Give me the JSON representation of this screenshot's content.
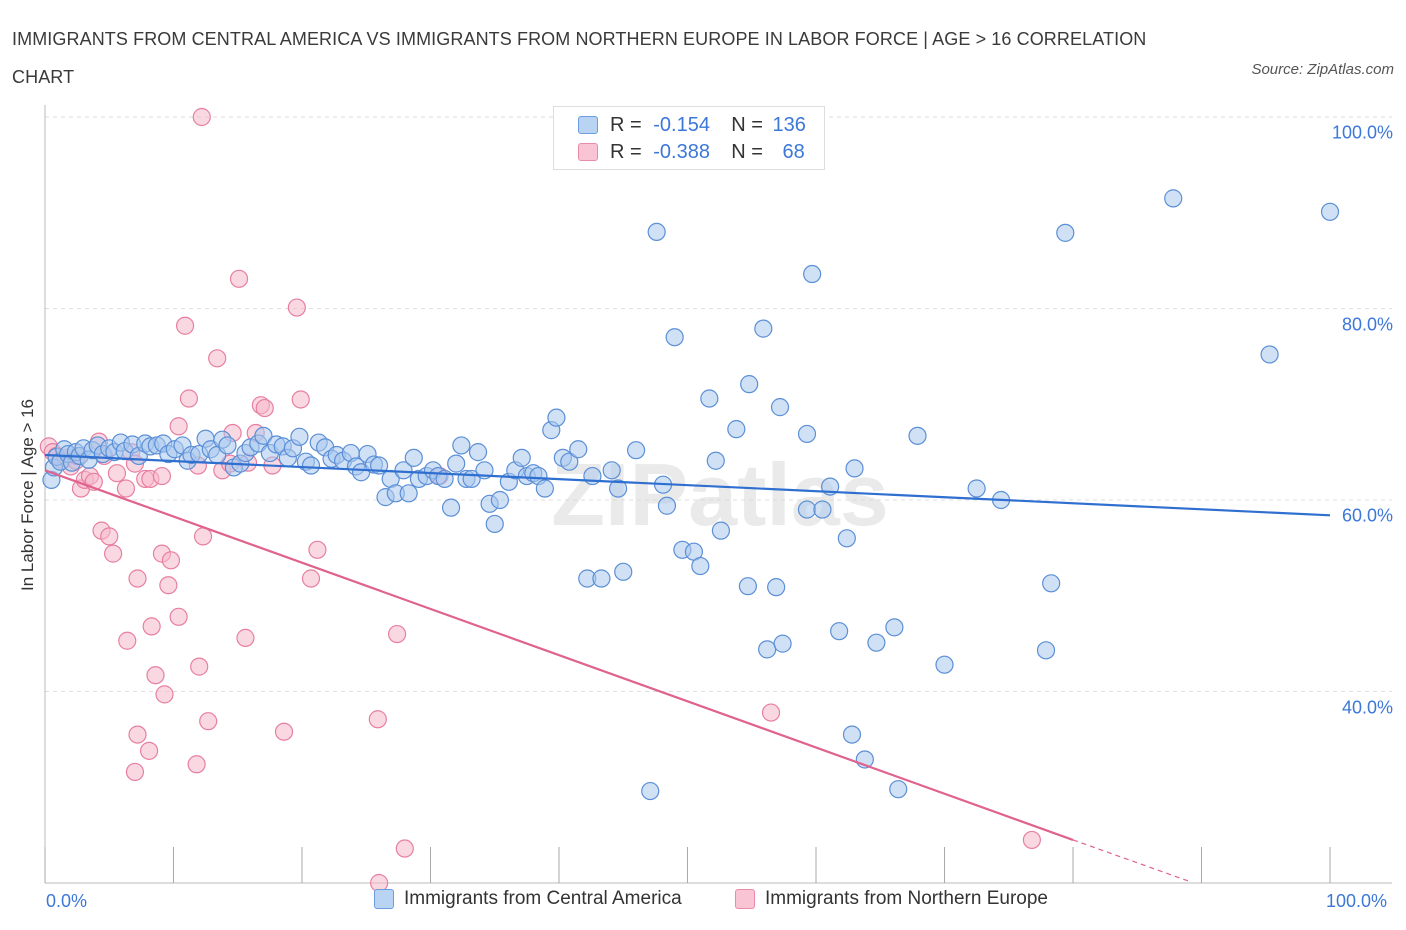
{
  "title": "IMMIGRANTS FROM CENTRAL AMERICA VS IMMIGRANTS FROM NORTHERN EUROPE IN LABOR FORCE | AGE > 16 CORRELATION CHART",
  "source": "Source: ZipAtlas.com",
  "watermark": "ZIPatlas",
  "legend_top": {
    "rows": [
      {
        "r_label": "R =",
        "r_value": "-0.154",
        "n_label": "N =",
        "n_value": "136"
      },
      {
        "r_label": "R =",
        "r_value": "-0.388",
        "n_label": "N =",
        "n_value": "68"
      }
    ]
  },
  "colors": {
    "blue_fill": "#a9c8ef",
    "blue_stroke": "#5b8fd6",
    "blue_line": "#2f6fd0",
    "pink_fill": "#f6b8cb",
    "pink_stroke": "#e77fa2",
    "pink_line": "#e0628e",
    "axis_text": "#3b78d8",
    "grid": "#dddddd"
  },
  "chart_data": {
    "type": "scatter",
    "title": "IMMIGRANTS FROM CENTRAL AMERICA VS IMMIGRANTS FROM NORTHERN EUROPE IN LABOR FORCE | AGE > 16 CORRELATION CHART",
    "xlabel": "",
    "ylabel": "In Labor Force | Age > 16",
    "xlim": [
      0,
      100
    ],
    "ylim": [
      20,
      100
    ],
    "x_tick_labels": [
      "0.0%",
      "100.0%"
    ],
    "y_tick_labels": [
      "100.0%",
      "80.0%",
      "60.0%",
      "40.0%"
    ],
    "y_ticks": [
      100,
      80,
      60,
      40
    ],
    "grid": true,
    "legend_position": "bottom-center",
    "series": [
      {
        "name": "Immigrants from Central America",
        "color": "#a9c8ef",
        "R": -0.154,
        "N": 136,
        "trend": {
          "x": [
            0,
            100
          ],
          "y": [
            64.7,
            58.4
          ]
        },
        "points": [
          [
            0.5,
            62.1
          ],
          [
            0.7,
            63.4
          ],
          [
            0.9,
            64.5
          ],
          [
            1.2,
            64.0
          ],
          [
            1.5,
            65.3
          ],
          [
            1.8,
            64.8
          ],
          [
            2.1,
            63.9
          ],
          [
            2.4,
            65.0
          ],
          [
            2.7,
            64.6
          ],
          [
            3.0,
            65.4
          ],
          [
            3.4,
            64.2
          ],
          [
            3.7,
            65.2
          ],
          [
            4.1,
            65.7
          ],
          [
            4.5,
            64.8
          ],
          [
            5.0,
            65.4
          ],
          [
            5.4,
            65.0
          ],
          [
            5.9,
            66.0
          ],
          [
            6.2,
            65.1
          ],
          [
            6.8,
            65.8
          ],
          [
            7.3,
            64.6
          ],
          [
            7.8,
            65.9
          ],
          [
            8.2,
            65.6
          ],
          [
            8.7,
            65.7
          ],
          [
            9.2,
            65.9
          ],
          [
            9.6,
            64.8
          ],
          [
            10.1,
            65.3
          ],
          [
            10.7,
            65.7
          ],
          [
            11.1,
            64.1
          ],
          [
            11.4,
            64.7
          ],
          [
            12.0,
            64.8
          ],
          [
            12.5,
            66.4
          ],
          [
            12.9,
            65.3
          ],
          [
            13.4,
            64.7
          ],
          [
            13.8,
            66.3
          ],
          [
            14.2,
            65.7
          ],
          [
            14.7,
            63.4
          ],
          [
            15.2,
            63.8
          ],
          [
            15.6,
            64.9
          ],
          [
            16.0,
            65.5
          ],
          [
            16.6,
            65.9
          ],
          [
            17.0,
            66.7
          ],
          [
            17.5,
            64.9
          ],
          [
            18.0,
            65.8
          ],
          [
            18.5,
            65.6
          ],
          [
            18.9,
            64.4
          ],
          [
            19.3,
            65.4
          ],
          [
            19.8,
            66.6
          ],
          [
            20.3,
            64.0
          ],
          [
            20.7,
            63.6
          ],
          [
            21.3,
            66.0
          ],
          [
            21.8,
            65.5
          ],
          [
            22.3,
            64.3
          ],
          [
            22.7,
            64.7
          ],
          [
            23.2,
            64.1
          ],
          [
            23.8,
            64.9
          ],
          [
            24.2,
            63.5
          ],
          [
            24.6,
            62.9
          ],
          [
            25.1,
            64.8
          ],
          [
            25.6,
            63.7
          ],
          [
            26.0,
            63.6
          ],
          [
            26.5,
            60.3
          ],
          [
            26.9,
            62.2
          ],
          [
            27.3,
            60.7
          ],
          [
            27.9,
            63.1
          ],
          [
            28.3,
            60.7
          ],
          [
            28.7,
            64.4
          ],
          [
            29.1,
            62.2
          ],
          [
            29.7,
            62.5
          ],
          [
            30.2,
            63.1
          ],
          [
            30.6,
            62.5
          ],
          [
            31.1,
            62.2
          ],
          [
            31.6,
            59.2
          ],
          [
            32.0,
            63.8
          ],
          [
            32.4,
            65.7
          ],
          [
            32.8,
            62.2
          ],
          [
            33.2,
            62.2
          ],
          [
            33.7,
            65.0
          ],
          [
            34.2,
            63.1
          ],
          [
            34.6,
            59.6
          ],
          [
            35.0,
            57.5
          ],
          [
            35.4,
            60.0
          ],
          [
            36.1,
            61.9
          ],
          [
            36.6,
            63.1
          ],
          [
            37.1,
            64.4
          ],
          [
            37.5,
            62.5
          ],
          [
            38.0,
            62.8
          ],
          [
            38.4,
            62.5
          ],
          [
            38.9,
            61.2
          ],
          [
            39.4,
            67.3
          ],
          [
            39.8,
            68.6
          ],
          [
            40.3,
            64.4
          ],
          [
            40.8,
            64.0
          ],
          [
            41.5,
            65.3
          ],
          [
            42.2,
            51.8
          ],
          [
            42.6,
            62.5
          ],
          [
            43.3,
            51.8
          ],
          [
            44.1,
            63.1
          ],
          [
            44.6,
            61.2
          ],
          [
            45.0,
            52.5
          ],
          [
            46.0,
            65.2
          ],
          [
            47.6,
            88.0
          ],
          [
            48.1,
            61.6
          ],
          [
            48.4,
            59.4
          ],
          [
            49.0,
            77.0
          ],
          [
            49.6,
            54.8
          ],
          [
            50.5,
            54.6
          ],
          [
            51.0,
            53.1
          ],
          [
            51.7,
            70.6
          ],
          [
            52.2,
            64.1
          ],
          [
            52.6,
            56.8
          ],
          [
            53.8,
            67.4
          ],
          [
            54.8,
            72.1
          ],
          [
            54.7,
            51.0
          ],
          [
            55.9,
            77.9
          ],
          [
            56.9,
            50.9
          ],
          [
            56.2,
            44.4
          ],
          [
            57.2,
            69.7
          ],
          [
            57.4,
            45.0
          ],
          [
            59.3,
            66.9
          ],
          [
            59.3,
            59.0
          ],
          [
            59.7,
            83.6
          ],
          [
            60.5,
            59.0
          ],
          [
            61.1,
            61.4
          ],
          [
            61.8,
            46.3
          ],
          [
            62.4,
            56.0
          ],
          [
            62.8,
            35.5
          ],
          [
            63.0,
            63.3
          ],
          [
            63.8,
            32.9
          ],
          [
            64.7,
            45.1
          ],
          [
            66.1,
            46.7
          ],
          [
            66.4,
            29.8
          ],
          [
            67.9,
            66.7
          ],
          [
            70.0,
            42.8
          ],
          [
            72.5,
            61.2
          ],
          [
            74.4,
            60.0
          ],
          [
            77.9,
            44.3
          ],
          [
            78.3,
            51.3
          ],
          [
            79.4,
            87.9
          ],
          [
            87.8,
            91.5
          ],
          [
            95.3,
            75.2
          ],
          [
            100,
            90.1
          ],
          [
            47.1,
            29.6
          ]
        ]
      },
      {
        "name": "Immigrants from Northern Europe",
        "color": "#f6b8cb",
        "R": -0.388,
        "N": 68,
        "trend": {
          "x": [
            0,
            80
          ],
          "y": [
            63.1,
            24.5
          ]
        },
        "trend_dashed": {
          "x": [
            80,
            89
          ],
          "y": [
            24.5,
            20.2
          ]
        },
        "points": [
          [
            0.3,
            65.6
          ],
          [
            0.6,
            65.0
          ],
          [
            0.9,
            64.6
          ],
          [
            1.3,
            64.2
          ],
          [
            1.6,
            64.4
          ],
          [
            2.0,
            63.5
          ],
          [
            2.4,
            64.1
          ],
          [
            2.8,
            61.2
          ],
          [
            3.1,
            62.1
          ],
          [
            3.5,
            62.5
          ],
          [
            3.8,
            61.9
          ],
          [
            4.2,
            66.1
          ],
          [
            4.6,
            64.6
          ],
          [
            4.4,
            56.8
          ],
          [
            5.0,
            56.2
          ],
          [
            5.3,
            54.4
          ],
          [
            5.6,
            62.8
          ],
          [
            6.3,
            61.2
          ],
          [
            6.4,
            45.3
          ],
          [
            6.7,
            65.0
          ],
          [
            7.0,
            63.8
          ],
          [
            7.2,
            51.8
          ],
          [
            7.8,
            62.2
          ],
          [
            8.3,
            46.8
          ],
          [
            8.6,
            41.7
          ],
          [
            9.1,
            54.4
          ],
          [
            9.3,
            39.7
          ],
          [
            9.6,
            51.1
          ],
          [
            9.8,
            53.7
          ],
          [
            10.4,
            47.8
          ],
          [
            10.4,
            67.7
          ],
          [
            10.9,
            78.2
          ],
          [
            11.2,
            70.6
          ],
          [
            11.8,
            32.4
          ],
          [
            12.0,
            42.6
          ],
          [
            11.9,
            63.6
          ],
          [
            12.3,
            56.2
          ],
          [
            12.7,
            36.9
          ],
          [
            13.4,
            74.8
          ],
          [
            13.8,
            63.1
          ],
          [
            14.4,
            63.8
          ],
          [
            15.1,
            83.1
          ],
          [
            15.6,
            45.6
          ],
          [
            16.4,
            67.0
          ],
          [
            16.8,
            69.9
          ],
          [
            17.1,
            69.6
          ],
          [
            17.7,
            63.6
          ],
          [
            18.6,
            35.8
          ],
          [
            19.6,
            80.1
          ],
          [
            19.9,
            70.5
          ],
          [
            20.7,
            51.8
          ],
          [
            21.2,
            54.8
          ],
          [
            25.9,
            37.1
          ],
          [
            26.0,
            20.0
          ],
          [
            27.4,
            46.0
          ],
          [
            28.0,
            23.6
          ],
          [
            30.7,
            62.5
          ],
          [
            14.6,
            67.0
          ],
          [
            15.8,
            63.9
          ],
          [
            8.1,
            33.8
          ],
          [
            7.2,
            35.5
          ],
          [
            7.0,
            31.6
          ],
          [
            8.2,
            62.2
          ],
          [
            9.1,
            62.5
          ],
          [
            12.2,
            100.0
          ],
          [
            56.5,
            37.8
          ],
          [
            76.8,
            24.5
          ],
          [
            2.5,
            64.6
          ]
        ]
      }
    ]
  },
  "bottom_legend": {
    "items": [
      {
        "label": "Immigrants from Central America"
      },
      {
        "label": "Immigrants from Northern Europe"
      }
    ]
  }
}
